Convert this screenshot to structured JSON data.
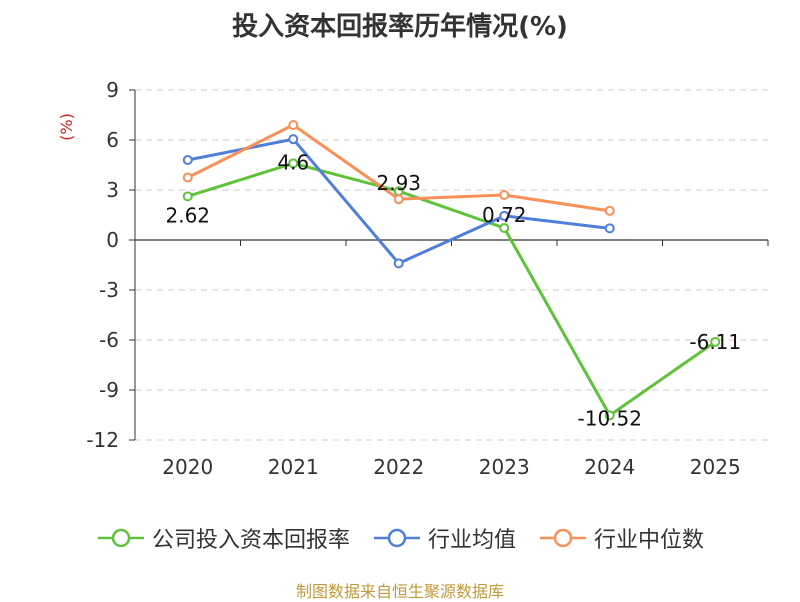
{
  "chart_data": {
    "type": "line",
    "title": "投入资本回报率历年情况(%)",
    "ylabel": "(%)",
    "categories": [
      "2020",
      "2021",
      "2022",
      "2023",
      "2024",
      "2025"
    ],
    "ylim": [
      -12,
      9
    ],
    "yticks": [
      9,
      6,
      3,
      0,
      -3,
      -6,
      -9,
      -12
    ],
    "series": [
      {
        "name": "公司投入资本回报率",
        "color": "#5fc23a",
        "values": [
          2.62,
          4.6,
          2.93,
          0.72,
          -10.52,
          -6.11
        ],
        "labels": [
          "2.62",
          "4.6",
          "2.93",
          "0.72",
          "-10.52",
          "-6.11"
        ]
      },
      {
        "name": "行业均值",
        "color": "#4f7fdb",
        "values": [
          4.8,
          6.05,
          -1.4,
          1.45,
          0.7,
          null
        ]
      },
      {
        "name": "行业中位数",
        "color": "#f79157",
        "values": [
          3.75,
          6.9,
          2.45,
          2.7,
          1.75,
          null
        ]
      }
    ],
    "source": "制图数据来自恒生聚源数据库"
  }
}
